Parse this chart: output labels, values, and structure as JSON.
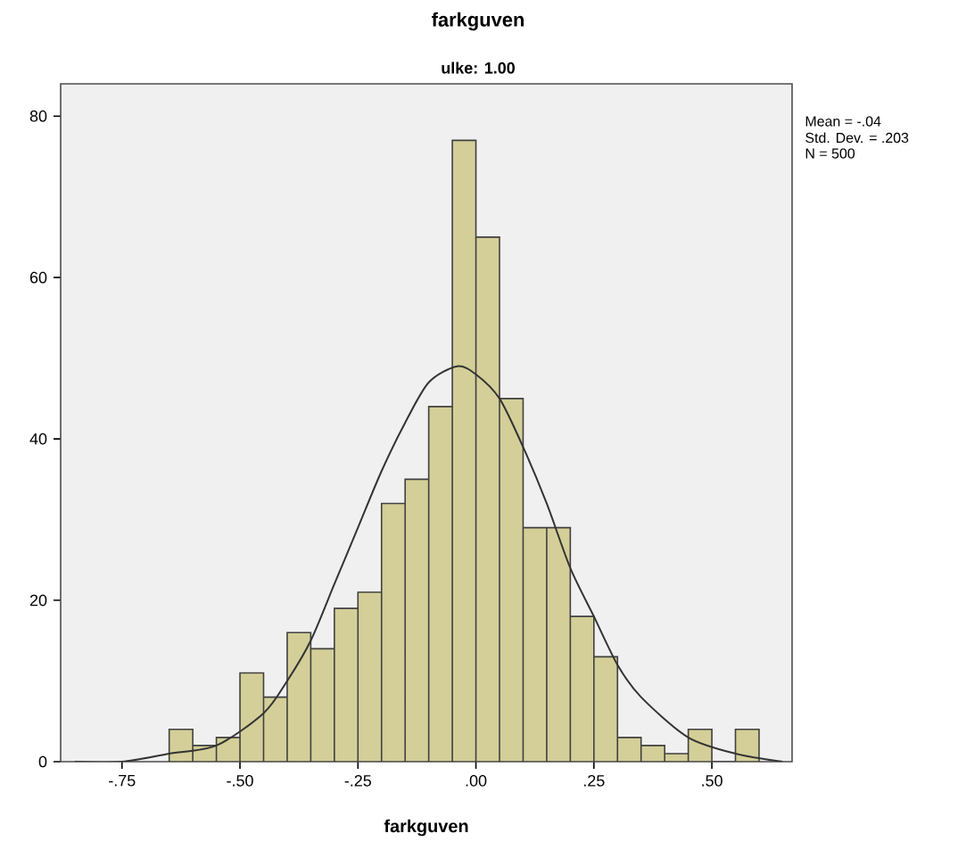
{
  "chart_data": {
    "type": "histogram",
    "title": "farkguven",
    "subtitle": "ulke: 1.00",
    "xlabel": "farkguven",
    "annotations": [
      "Mean = -.04",
      "Std. Dev. = .203",
      "N = 500"
    ],
    "bins": [
      -0.65,
      -0.6,
      -0.55,
      -0.5,
      -0.45,
      -0.4,
      -0.35,
      -0.3,
      -0.25,
      -0.2,
      -0.15,
      -0.1,
      -0.05,
      0,
      0.05,
      0.1,
      0.15,
      0.2,
      0.25,
      0.3,
      0.35,
      0.4,
      0.45,
      0.5,
      0.55,
      0.6
    ],
    "values": [
      4,
      2,
      3,
      11,
      8,
      16,
      14,
      19,
      21,
      32,
      35,
      44,
      77,
      65,
      45,
      29,
      29,
      18,
      13,
      3,
      2,
      1,
      4,
      0,
      4
    ],
    "color": "#d4cf98",
    "series": [
      {
        "type": "line",
        "color": "#333333",
        "x": [
          -0.85,
          -0.75,
          -0.65,
          -0.55,
          -0.45,
          -0.4,
          -0.35,
          -0.3,
          -0.25,
          -0.2,
          -0.15,
          -0.1,
          -0.04,
          0,
          0.05,
          0.1,
          0.15,
          0.2,
          0.25,
          0.3,
          0.35,
          0.45,
          0.55,
          0.65
        ],
        "values": [
          0,
          0,
          1,
          2,
          6,
          10,
          15,
          22,
          29,
          36,
          42,
          47,
          49,
          48,
          45,
          39,
          32,
          24,
          18,
          12,
          8,
          3,
          1,
          0
        ]
      }
    ],
    "xlim": [
      -0.88,
      0.67
    ],
    "ylim": [
      0,
      84
    ],
    "xticks": [
      {
        "value": -0.75,
        "label": "-.75"
      },
      {
        "value": -0.5,
        "label": "-.50"
      },
      {
        "value": -0.25,
        "label": "-.25"
      },
      {
        "value": 0,
        "label": ".00"
      },
      {
        "value": 0.25,
        "label": ".25"
      },
      {
        "value": 0.5,
        "label": ".50"
      }
    ],
    "yticks": [
      0,
      20,
      40,
      60,
      80
    ]
  }
}
